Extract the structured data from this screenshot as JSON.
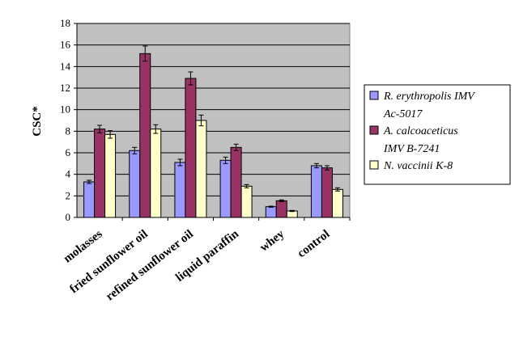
{
  "chart_data": {
    "type": "bar",
    "ylabel": "CSC*",
    "xlabel": "",
    "ylim": [
      0,
      18
    ],
    "yticks": [
      0,
      2,
      4,
      6,
      8,
      10,
      12,
      14,
      16,
      18
    ],
    "grid": "horizontal",
    "plot_background": "#c0c0c0",
    "legend_position": "right",
    "categories": [
      "molasses",
      "fried sunflower oil",
      "refined sunflower oil",
      "liquid paraffin",
      "whey",
      "control"
    ],
    "series": [
      {
        "name": "R. erythropolis IMV Ac-5017",
        "legend_lines": [
          "R. erythropolis IMV",
          "Ac-5017"
        ],
        "color": "#9999ff",
        "values": [
          3.3,
          6.2,
          5.1,
          5.3,
          1.0,
          4.8
        ],
        "errors": [
          0.15,
          0.3,
          0.3,
          0.3,
          0.05,
          0.2
        ]
      },
      {
        "name": "A. calcoaceticus IMV B-7241",
        "legend_lines": [
          "A. calcoaceticus",
          "IMV B-7241"
        ],
        "color": "#993366",
        "values": [
          8.2,
          15.2,
          12.9,
          6.5,
          1.55,
          4.6
        ],
        "errors": [
          0.35,
          0.7,
          0.6,
          0.3,
          0.08,
          0.2
        ]
      },
      {
        "name": "N. vaccinii K-8",
        "legend_lines": [
          "N. vaccinii K-8"
        ],
        "color": "#ffffcc",
        "values": [
          7.7,
          8.2,
          9.0,
          2.9,
          0.6,
          2.6
        ],
        "errors": [
          0.35,
          0.4,
          0.5,
          0.15,
          0.05,
          0.15
        ]
      }
    ]
  }
}
